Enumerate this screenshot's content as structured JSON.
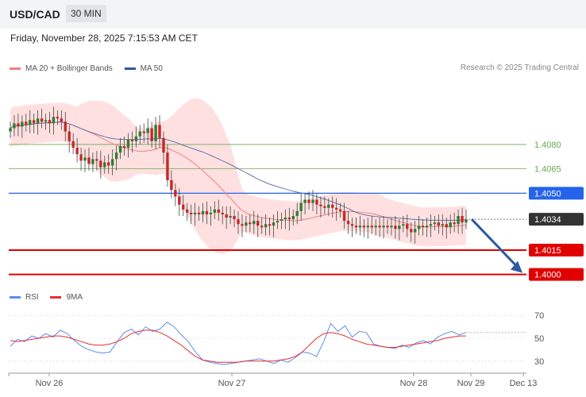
{
  "header": {
    "symbol": "USD/CAD",
    "timeframe": "30 MIN",
    "datetime": "Friday, November 28, 2025 7:15:53 AM CET"
  },
  "legend": {
    "ma20_label": "MA 20 + Bollinger Bands",
    "ma50_label": "MA 50",
    "credit": "Research © 2025 Trading Central"
  },
  "rsi_legend": {
    "rsi_label": "RSI",
    "ma9_label": "9MA"
  },
  "colors": {
    "bollinger_fill": "#ffe0e0",
    "ma20": "#f08080",
    "ma50": "#4f6aa8",
    "bull_candle": "#2e7d32",
    "bear_candle": "#c62828",
    "resistance_green": "#6aa84f",
    "pivot_blue": "#2563eb",
    "support_red": "#e00000",
    "current_price": "#333333",
    "rsi_line": "#5b8def",
    "rsi_ma": "#e03030"
  },
  "chart_data": [
    {
      "type": "candlestick",
      "title": "USD/CAD",
      "timeframe": "30 MIN",
      "x_ticks": [
        "Nov 26",
        "Nov 27",
        "Nov 28",
        "Nov 29",
        "Dec 13"
      ],
      "ylim": [
        1.3993,
        1.4122
      ],
      "levels": [
        {
          "value": 1.408,
          "label": "1.4080",
          "kind": "resistance"
        },
        {
          "value": 1.4065,
          "label": "1.4065",
          "kind": "resistance"
        },
        {
          "value": 1.405,
          "label": "1.4050",
          "kind": "pivot"
        },
        {
          "value": 1.4034,
          "label": "1.4034",
          "kind": "current"
        },
        {
          "value": 1.4015,
          "label": "1.4015",
          "kind": "support"
        },
        {
          "value": 1.4,
          "label": "1.4000",
          "kind": "support"
        }
      ],
      "forecast": {
        "from": 1.4034,
        "to": 1.4,
        "direction": "down"
      },
      "close_path": [
        1.409,
        1.4093,
        1.4091,
        1.4094,
        1.4092,
        1.4095,
        1.4093,
        1.4096,
        1.4094,
        1.4095,
        1.4093,
        1.4097,
        1.4096,
        1.4094,
        1.4088,
        1.4082,
        1.4078,
        1.4074,
        1.407,
        1.4072,
        1.4068,
        1.4071,
        1.407,
        1.4066,
        1.4069,
        1.4067,
        1.4071,
        1.4075,
        1.4079,
        1.4078,
        1.4083,
        1.4082,
        1.4085,
        1.4088,
        1.4087,
        1.409,
        1.4082,
        1.4092,
        1.4084,
        1.4075,
        1.4058,
        1.4052,
        1.4048,
        1.4043,
        1.404,
        1.4038,
        1.4037,
        1.4038,
        1.4037,
        1.4039,
        1.4037,
        1.4038,
        1.404,
        1.4038,
        1.4037,
        1.4035,
        1.4036,
        1.4034,
        1.4031,
        1.403,
        1.4032,
        1.4031,
        1.4033,
        1.403,
        1.4029,
        1.4031,
        1.403,
        1.4032,
        1.4033,
        1.4034,
        1.4035,
        1.4034,
        1.4036,
        1.4039,
        1.4044,
        1.4046,
        1.4044,
        1.4046,
        1.4043,
        1.4042,
        1.4041,
        1.4043,
        1.4041,
        1.404,
        1.4039,
        1.4033,
        1.4031,
        1.403,
        1.4029,
        1.403,
        1.4029,
        1.403,
        1.4029,
        1.403,
        1.4029,
        1.403,
        1.4029,
        1.403,
        1.4028,
        1.403,
        1.4031,
        1.4028,
        1.4026,
        1.4028,
        1.403,
        1.4029,
        1.403,
        1.4031,
        1.4032,
        1.403,
        1.4031,
        1.4029,
        1.4032,
        1.4031,
        1.4036,
        1.4032,
        1.4034
      ]
    },
    {
      "type": "line",
      "title": "RSI",
      "ylim": [
        25,
        75
      ],
      "y_ticks": [
        70,
        50,
        30
      ],
      "series": [
        {
          "name": "RSI",
          "values": [
            43,
            49,
            47,
            52,
            50,
            54,
            51,
            57,
            54,
            48,
            43,
            40,
            38,
            37,
            38,
            47,
            55,
            58,
            53,
            60,
            56,
            58,
            64,
            60,
            53,
            47,
            38,
            31,
            29,
            28,
            27,
            28,
            29,
            30,
            31,
            32,
            30,
            28,
            31,
            29,
            33,
            38,
            37,
            34,
            47,
            63,
            56,
            61,
            51,
            56,
            55,
            45,
            43,
            42,
            41,
            44,
            42,
            46,
            48,
            45,
            51,
            54,
            56,
            53,
            55
          ]
        },
        {
          "name": "9MA",
          "values": [
            48,
            47,
            48,
            49,
            50,
            51,
            52,
            52,
            51,
            49,
            47,
            45,
            44,
            44,
            45,
            47,
            50,
            54,
            56,
            57,
            57,
            55,
            52,
            48,
            44,
            39,
            34,
            31,
            30,
            29,
            29,
            29,
            29,
            30,
            30,
            30,
            30,
            30,
            31,
            32,
            34,
            38,
            44,
            50,
            54,
            55,
            54,
            52,
            49,
            47,
            45,
            44,
            43,
            42,
            42,
            43,
            44,
            45,
            46,
            47,
            48,
            50,
            51,
            52,
            52
          ]
        }
      ]
    }
  ]
}
